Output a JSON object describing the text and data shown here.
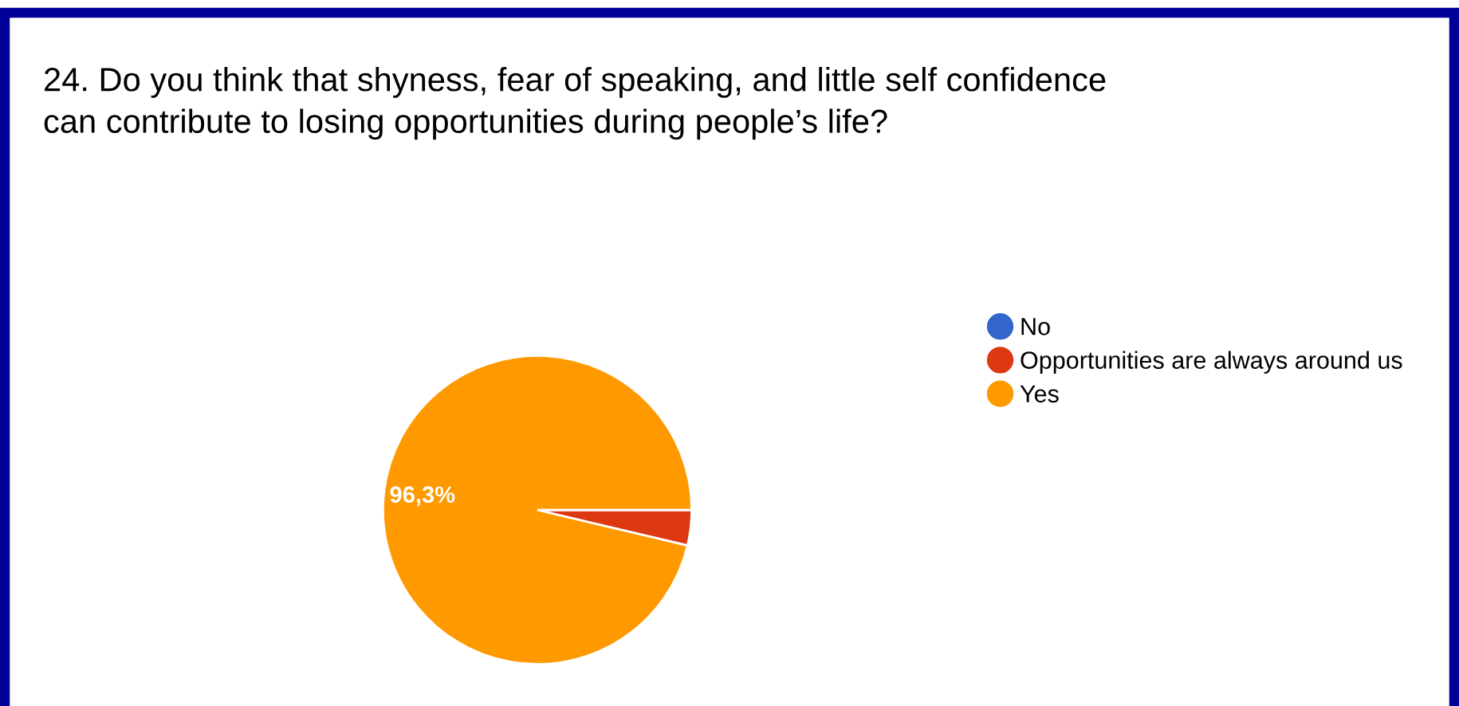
{
  "chart_data": {
    "type": "pie",
    "title": "24. Do you think that shyness, fear of speaking, and little self confidence\ncan contribute to losing opportunities during people’s life?",
    "categories": [
      "No",
      "Opportunities are always around us",
      "Yes"
    ],
    "values": [
      0,
      3.7,
      96.3
    ],
    "colors": [
      "#3366cc",
      "#dc3912",
      "#ff9900"
    ],
    "value_labels": [
      null,
      null,
      "96,3%"
    ],
    "legend": "right"
  }
}
